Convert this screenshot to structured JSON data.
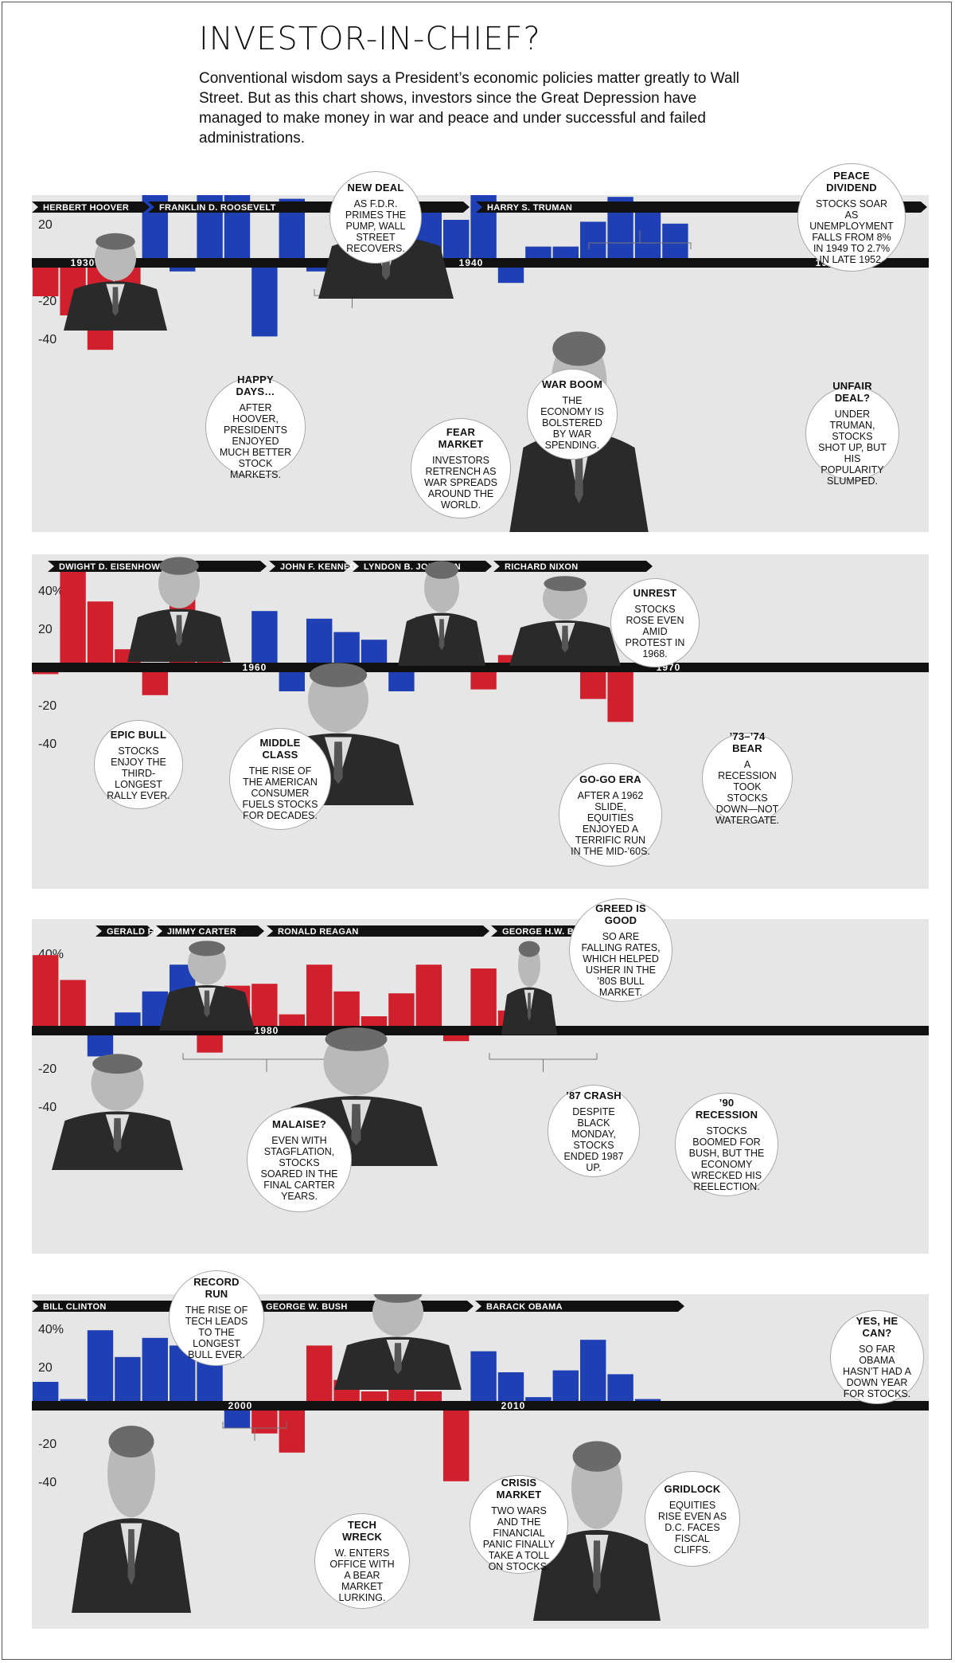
{
  "title": "INVESTOR-IN-CHIEF?",
  "subtitle": "Conventional wisdom says a President’s economic policies matter greatly to Wall Street. But as this chart shows, investors since the Great Depression have managed to make money in war and peace and under successful and failed administrations.",
  "colors": {
    "republican": "#d0202e",
    "democrat": "#1f3fb4",
    "panel_bg": "#e6e6e6",
    "axis": "#111111"
  },
  "chart_data": [
    {
      "type": "bar",
      "years": [
        1929,
        1930,
        1931,
        1932,
        1933,
        1934,
        1935,
        1936,
        1937,
        1938,
        1939,
        1940,
        1941,
        1942,
        1943,
        1944,
        1945,
        1946,
        1947,
        1948,
        1949,
        1950,
        1951,
        1952
      ],
      "values": [
        -15,
        -25,
        -43,
        -9,
        50,
        -2,
        47,
        34,
        -36,
        31,
        -2,
        -10,
        -12,
        20,
        26,
        20,
        35,
        -8,
        6,
        6,
        19,
        32,
        24,
        18
      ],
      "parties": [
        "R",
        "R",
        "R",
        "R",
        "D",
        "D",
        "D",
        "D",
        "D",
        "D",
        "D",
        "D",
        "D",
        "D",
        "D",
        "D",
        "D",
        "D",
        "D",
        "D",
        "D",
        "D",
        "D",
        "D"
      ],
      "yticks": [
        "40%",
        "20",
        "-20",
        "-40"
      ],
      "decades": [
        "1930",
        "1940",
        "1950"
      ],
      "ylim": [
        -50,
        55
      ]
    },
    {
      "type": "bar",
      "years": [
        1953,
        1954,
        1955,
        1956,
        1957,
        1958,
        1959,
        1960,
        1961,
        1962,
        1963,
        1964,
        1965,
        1966,
        1967,
        1968,
        1969,
        1970,
        1971,
        1972,
        1973,
        1974
      ],
      "values": [
        -1,
        52,
        32,
        7,
        -12,
        44,
        12,
        0,
        27,
        -10,
        23,
        16,
        12,
        -10,
        24,
        11,
        -9,
        4,
        14,
        19,
        -14,
        -26
      ],
      "parties": [
        "R",
        "R",
        "R",
        "R",
        "R",
        "R",
        "R",
        "R",
        "D",
        "D",
        "D",
        "D",
        "D",
        "D",
        "D",
        "D",
        "R",
        "R",
        "R",
        "R",
        "R",
        "R"
      ],
      "yticks": [
        "40%",
        "20",
        "-20",
        "-40"
      ],
      "decades": [
        "1960",
        "1970"
      ],
      "ylim": [
        -50,
        55
      ]
    },
    {
      "type": "bar",
      "years": [
        1975,
        1976,
        1977,
        1978,
        1979,
        1980,
        1981,
        1982,
        1983,
        1984,
        1985,
        1986,
        1987,
        1988,
        1989,
        1990,
        1991,
        1992
      ],
      "values": [
        37,
        24,
        -11,
        7,
        18,
        32,
        -9,
        21,
        22,
        6,
        32,
        18,
        5,
        17,
        32,
        -3,
        30,
        8
      ],
      "parties": [
        "R",
        "R",
        "D",
        "D",
        "D",
        "D",
        "R",
        "R",
        "R",
        "R",
        "R",
        "R",
        "R",
        "R",
        "R",
        "R",
        "R",
        "R"
      ],
      "yticks": [
        "40%",
        "20",
        "-20",
        "-40"
      ],
      "decades": [
        "1980",
        "1990"
      ],
      "ylim": [
        -50,
        55
      ]
    },
    {
      "type": "bar",
      "years": [
        1993,
        1994,
        1995,
        1996,
        1997,
        1998,
        1999,
        2000,
        2001,
        2002,
        2003,
        2004,
        2005,
        2006,
        2007,
        2008,
        2009,
        2010,
        2011,
        2012,
        2013,
        2014,
        2015
      ],
      "values": [
        10,
        1,
        37,
        23,
        33,
        29,
        21,
        -9,
        -12,
        -22,
        29,
        11,
        5,
        16,
        5,
        -37,
        26,
        15,
        2,
        16,
        32,
        14,
        1
      ],
      "parties": [
        "D",
        "D",
        "D",
        "D",
        "D",
        "D",
        "D",
        "D",
        "R",
        "R",
        "R",
        "R",
        "R",
        "R",
        "R",
        "R",
        "D",
        "D",
        "D",
        "D",
        "D",
        "D",
        "D"
      ],
      "yticks": [
        "40%",
        "20",
        "-20",
        "-40"
      ],
      "decades": [
        "2000",
        "2010"
      ],
      "ylim": [
        -50,
        55
      ]
    }
  ],
  "panels": [
    {
      "presidents": [
        "HERBERT HOOVER",
        "FRANKLIN D. ROOSEVELT",
        "HARRY S. TRUMAN"
      ],
      "annotations": [
        {
          "head": "NEW DEAL",
          "body": "AS F.D.R. PRIMES THE PUMP, WALL STREET RECOVERS."
        },
        {
          "head": "PEACE DIVIDEND",
          "body": "STOCKS SOAR AS UNEMPLOYMENT FALLS FROM 8% IN 1949 TO 2.7% IN LATE 1952."
        },
        {
          "head": "HAPPY DAYS…",
          "body": "AFTER HOOVER, PRESIDENTS ENJOYED MUCH BETTER STOCK MARKETS."
        },
        {
          "head": "FEAR MARKET",
          "body": "INVESTORS RETRENCH AS WAR SPREADS AROUND THE WORLD."
        },
        {
          "head": "WAR BOOM",
          "body": "THE ECONOMY IS BOLSTERED BY WAR SPENDING."
        },
        {
          "head": "UNFAIR DEAL?",
          "body": "UNDER TRUMAN, STOCKS SHOT UP, BUT HIS POPULARITY SLUMPED."
        }
      ]
    },
    {
      "presidents": [
        "DWIGHT D. EISENHOWER",
        "JOHN F. KENNEDY",
        "LYNDON B. JOHNSON",
        "RICHARD NIXON"
      ],
      "annotations": [
        {
          "head": "UNREST",
          "body": "STOCKS ROSE EVEN AMID PROTEST IN 1968."
        },
        {
          "head": "EPIC BULL",
          "body": "STOCKS ENJOY THE THIRD-LONGEST RALLY EVER."
        },
        {
          "head": "MIDDLE CLASS",
          "body": "THE RISE OF THE AMERICAN CONSUMER FUELS STOCKS FOR DECADES."
        },
        {
          "head": "GO-GO ERA",
          "body": "AFTER A 1962 SLIDE, EQUITIES ENJOYED A TERRIFIC RUN IN THE MID-’60S."
        },
        {
          "head": "’73–’74 BEAR",
          "body": "A RECESSION TOOK STOCKS DOWN—NOT WATERGATE."
        }
      ]
    },
    {
      "presidents": [
        "GERALD FORD",
        "JIMMY CARTER",
        "RONALD REAGAN",
        "GEORGE H.W. BUSH"
      ],
      "annotations": [
        {
          "head": "GREED IS GOOD",
          "body": "SO ARE FALLING RATES, WHICH HELPED USHER IN THE ’80S BULL MARKET."
        },
        {
          "head": "MALAISE?",
          "body": "EVEN WITH STAGFLATION, STOCKS SOARED IN THE FINAL CARTER YEARS."
        },
        {
          "head": "’87 CRASH",
          "body": "DESPITE BLACK MONDAY, STOCKS ENDED 1987 UP."
        },
        {
          "head": "’90 RECESSION",
          "body": "STOCKS BOOMED FOR BUSH, BUT THE ECONOMY WRECKED HIS REELECTION."
        }
      ]
    },
    {
      "presidents": [
        "BILL CLINTON",
        "GEORGE W. BUSH",
        "BARACK OBAMA"
      ],
      "annotations": [
        {
          "head": "RECORD RUN",
          "body": "THE RISE OF TECH LEADS TO THE LONGEST BULL EVER."
        },
        {
          "head": "YES, HE CAN?",
          "body": "SO FAR OBAMA HASN’T HAD A DOWN YEAR FOR STOCKS."
        },
        {
          "head": "TECH WRECK",
          "body": "W. ENTERS OFFICE WITH A BEAR MARKET LURKING."
        },
        {
          "head": "CRISIS MARKET",
          "body": "TWO WARS AND THE FINANCIAL PANIC FINALLY TAKE A TOLL ON STOCKS."
        },
        {
          "head": "GRIDLOCK",
          "body": "EQUITIES RISE EVEN AS D.C. FACES FISCAL CLIFFS."
        }
      ]
    }
  ]
}
